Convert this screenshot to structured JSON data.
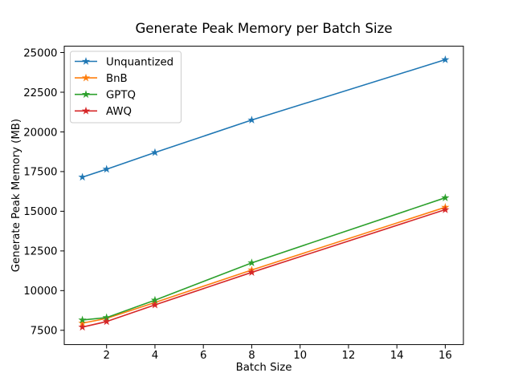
{
  "figure": {
    "title": "Generate Peak Memory per Batch Size",
    "xlabel": "Batch Size",
    "ylabel": "Generate Peak Memory (MB)"
  },
  "chart_data": {
    "type": "line",
    "title": "Generate Peak Memory per Batch Size",
    "xlabel": "Batch Size",
    "ylabel": "Generate Peak Memory (MB)",
    "x": [
      1,
      2,
      4,
      8,
      16
    ],
    "series": [
      {
        "name": "Unquantized",
        "color": "#1f77b4",
        "marker": "star",
        "values": [
          17150,
          17650,
          18700,
          20750,
          24550
        ]
      },
      {
        "name": "BnB",
        "color": "#ff7f0e",
        "marker": "star",
        "values": [
          7950,
          8250,
          9250,
          11300,
          15250
        ]
      },
      {
        "name": "GPTQ",
        "color": "#2ca02c",
        "marker": "star",
        "values": [
          8150,
          8300,
          9400,
          11750,
          15850
        ]
      },
      {
        "name": "AWQ",
        "color": "#d62728",
        "marker": "star",
        "values": [
          7700,
          8050,
          9100,
          11150,
          15100
        ]
      }
    ],
    "xticks": [
      2,
      4,
      6,
      8,
      10,
      12,
      14,
      16
    ],
    "yticks": [
      7500,
      10000,
      12500,
      15000,
      17500,
      20000,
      22500,
      25000
    ],
    "xlim": [
      0.25,
      16.75
    ],
    "ylim": [
      6600,
      25400
    ],
    "grid": false,
    "legend_position": "upper left",
    "spine_color": "#000000",
    "legend_border_color": "#cccccc",
    "background_color": "#ffffff"
  }
}
